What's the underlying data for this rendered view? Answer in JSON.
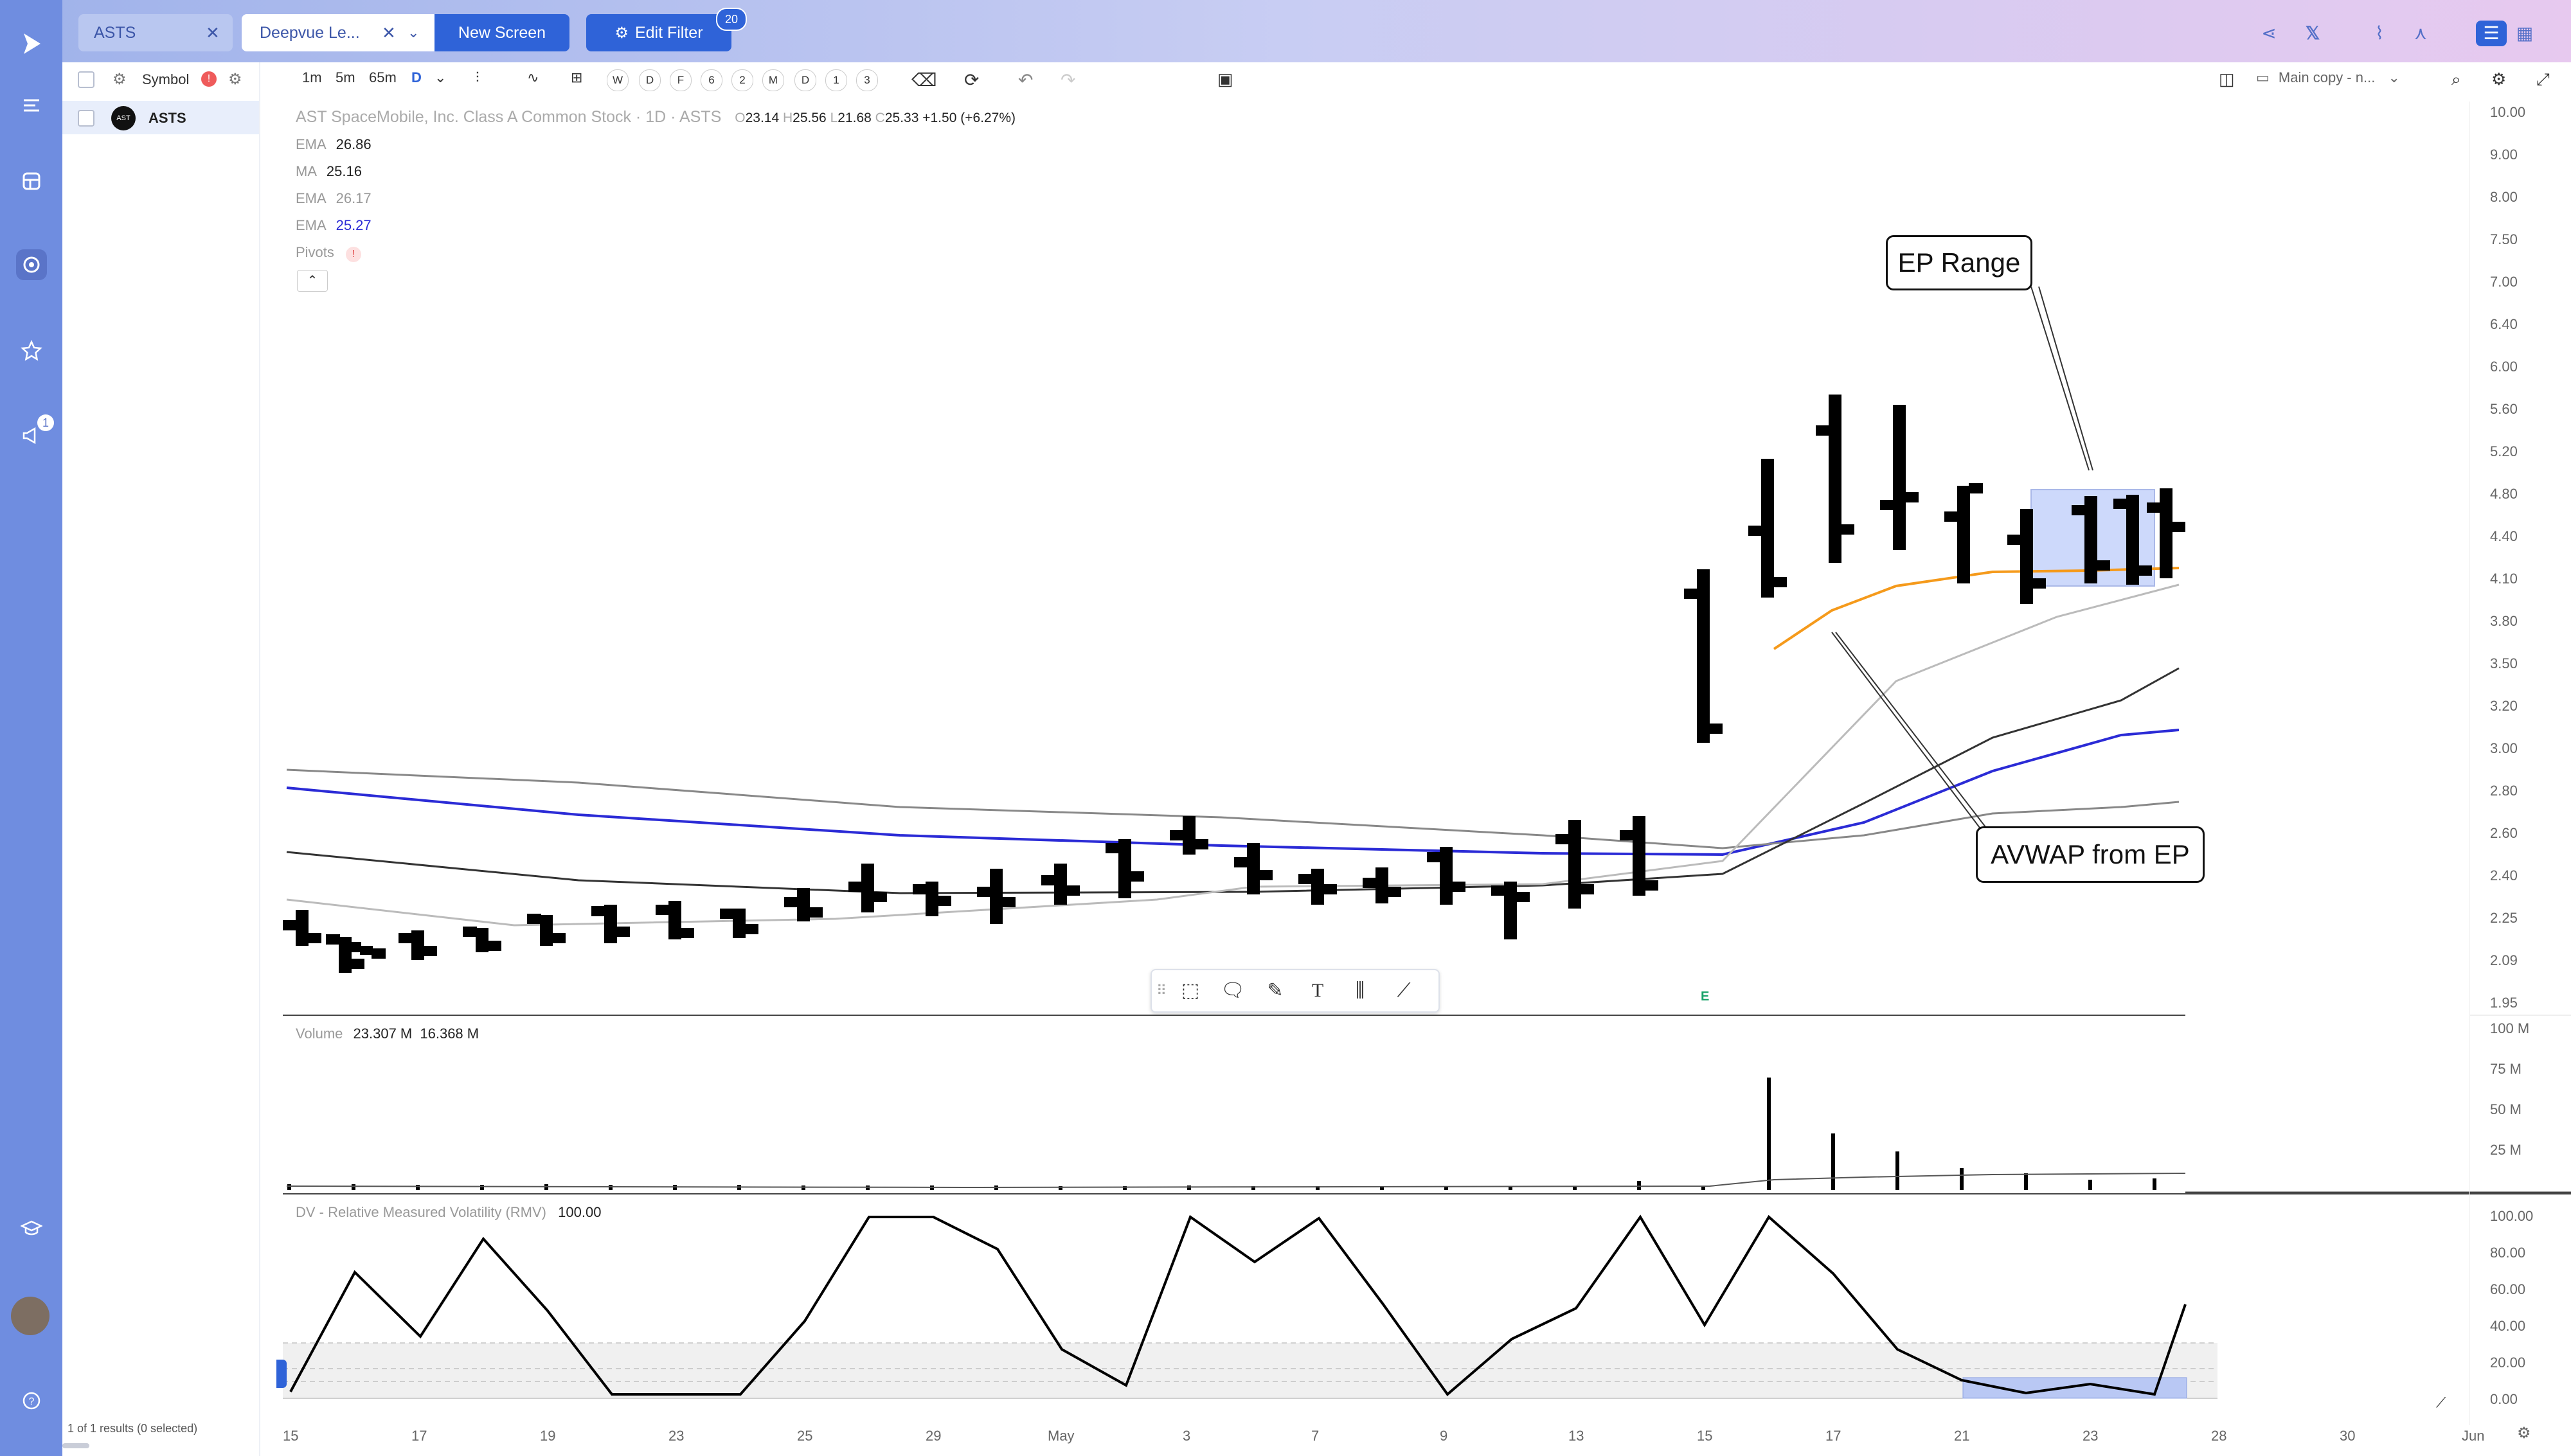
{
  "tabs": [
    {
      "label": "ASTS"
    },
    {
      "label": "Deepvue Le..."
    }
  ],
  "buttons": {
    "new_screen": "New Screen",
    "edit_filter": "Edit Filter",
    "filter_count": "20"
  },
  "nav": {
    "notif_count": "1"
  },
  "sidebar": {
    "header": "Symbol",
    "header_badge": "!",
    "rows": [
      {
        "symbol": "ASTS",
        "logo": "AST"
      }
    ],
    "footer": "1 of 1 results (0 selected)"
  },
  "toolbar": {
    "intervals": [
      "1m",
      "5m",
      "65m",
      "D"
    ],
    "periods": [
      "W",
      "D",
      "F",
      "6",
      "2",
      "M",
      "D",
      "1",
      "3"
    ],
    "layout": "Main copy - n..."
  },
  "chart": {
    "title": "AST SpaceMobile, Inc. Class A Common Stock · 1D · ASTS",
    "ohlc": {
      "o_label": "O",
      "o": "23.14",
      "h_label": "H",
      "h": "25.56",
      "l_label": "L",
      "l": "21.68",
      "c_label": "C",
      "c": "25.33",
      "chg": "+1.50 (+6.27%)"
    },
    "indicators": [
      {
        "name": "EMA",
        "value": "26.86",
        "color": "#222222"
      },
      {
        "name": "MA",
        "value": "25.16",
        "color": "#222222"
      },
      {
        "name": "EMA",
        "value": "26.17",
        "color": "#999999"
      },
      {
        "name": "EMA",
        "value": "25.27",
        "color": "#2b2bd6"
      }
    ],
    "pivots_label": "Pivots",
    "pivots_flag": "!",
    "earnings_marker": "E",
    "callout_ep_range": "EP Range",
    "callout_avwap": "AVWAP from EP",
    "price_axis": [
      "10.00",
      "9.00",
      "8.00",
      "7.50",
      "7.00",
      "6.40",
      "6.00",
      "5.60",
      "5.20",
      "4.80",
      "4.40",
      "4.10",
      "3.80",
      "3.50",
      "3.20",
      "3.00",
      "2.80",
      "2.60",
      "2.40",
      "2.25",
      "2.09",
      "1.95"
    ],
    "dates": [
      "15",
      "17",
      "19",
      "23",
      "25",
      "29",
      "May",
      "3",
      "7",
      "9",
      "13",
      "15",
      "17",
      "21",
      "23",
      "28",
      "30",
      "Jun"
    ],
    "volume": {
      "label": "Volume",
      "v1": "23.307 M",
      "v2": "16.368 M",
      "axis": [
        "100 M",
        "75 M",
        "50 M",
        "25 M"
      ]
    },
    "rmv": {
      "label": "DV - Relative Measured Volatility (RMV)",
      "value": "100.00",
      "axis": [
        "100.00",
        "80.00",
        "60.00",
        "40.00",
        "20.00",
        "0.00"
      ]
    },
    "colors": {
      "bars": "#000000",
      "blue_ma": "#2b2bd6",
      "avwap": "#f59a1b",
      "ep_box": "#cdd9fb"
    }
  }
}
